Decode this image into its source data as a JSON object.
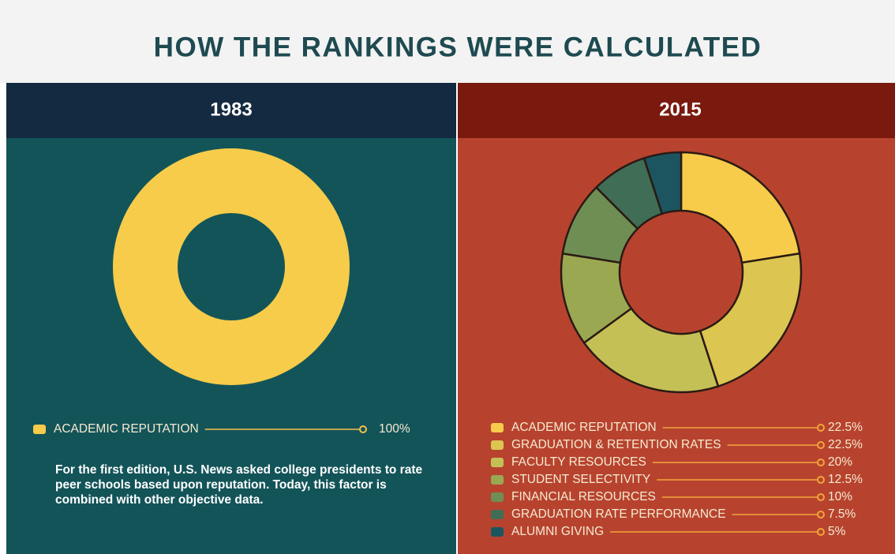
{
  "title": "HOW THE RANKINGS WERE CALCULATED",
  "chart_data": [
    {
      "type": "pie",
      "title": "1983",
      "categories": [
        "ACADEMIC REPUTATION"
      ],
      "values": [
        100
      ],
      "value_labels": [
        "100%"
      ],
      "colors": [
        "#f6cc4a"
      ],
      "note": "For the first edition, U.S. News asked college presidents to rate peer schools based upon reputation. Today, this factor is combined with other objective data."
    },
    {
      "type": "pie",
      "title": "2015",
      "categories": [
        "ACADEMIC REPUTATION",
        "GRADUATION & RETENTION RATES",
        "FACULTY RESOURCES",
        "STUDENT SELECTIVITY",
        "FINANCIAL RESOURCES",
        "GRADUATION RATE PERFORMANCE",
        "ALUMNI GIVING"
      ],
      "values": [
        22.5,
        22.5,
        20,
        12.5,
        10,
        7.5,
        5
      ],
      "value_labels": [
        "22.5%",
        "22.5%",
        "20%",
        "12.5%",
        "10%",
        "7.5%",
        "5%"
      ],
      "colors": [
        "#f6cc4a",
        "#dcc550",
        "#c4c056",
        "#9aa851",
        "#6f8e53",
        "#3f6d56",
        "#1c5560"
      ]
    }
  ]
}
